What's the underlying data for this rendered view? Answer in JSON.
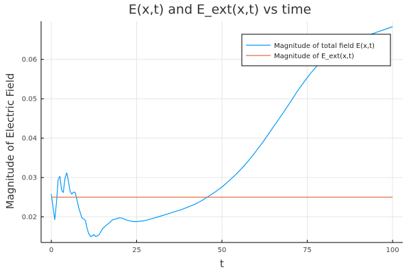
{
  "chart_data": {
    "type": "line",
    "title": "E(x,t) and E_ext(x,t) vs time",
    "xlabel": "t",
    "ylabel": "Magnitude of Electric Field",
    "xlim": [
      -3,
      103
    ],
    "ylim": [
      0.0135,
      0.0697
    ],
    "x_ticks": [
      0,
      25,
      50,
      75,
      100
    ],
    "x_tick_labels": [
      "0",
      "25",
      "50",
      "75",
      "100"
    ],
    "y_ticks": [
      0.02,
      0.03,
      0.04,
      0.05,
      0.06
    ],
    "y_tick_labels": [
      "0.02",
      "0.03",
      "0.04",
      "0.05",
      "0.06"
    ],
    "grid": true,
    "legend_position": "top-right",
    "series": [
      {
        "name": "Magnitude of total field E(x,t)",
        "color": "#009AFA",
        "x": [
          0,
          0.5,
          1,
          1.5,
          2,
          2.5,
          3,
          3.5,
          4,
          4.5,
          5,
          5.5,
          6,
          6.5,
          7,
          7.5,
          8,
          8.5,
          9,
          9.5,
          10,
          10.5,
          11,
          11.5,
          12,
          12.5,
          13,
          13.5,
          14,
          15,
          16,
          17,
          18,
          19,
          20,
          21,
          22,
          23,
          24,
          25,
          26,
          27,
          28,
          30,
          32,
          34,
          36,
          38,
          40,
          42,
          44,
          46,
          48,
          50,
          52,
          54,
          56,
          58,
          60,
          62,
          64,
          66,
          68,
          70,
          72,
          74,
          76,
          78,
          80,
          82,
          84,
          86,
          88,
          90,
          92,
          94,
          96,
          98,
          100
        ],
        "values": [
          0.0258,
          0.0225,
          0.0193,
          0.0235,
          0.0295,
          0.0303,
          0.0268,
          0.0262,
          0.0298,
          0.0312,
          0.0292,
          0.0265,
          0.0258,
          0.0263,
          0.0262,
          0.0243,
          0.0224,
          0.021,
          0.0197,
          0.0195,
          0.019,
          0.017,
          0.0157,
          0.015,
          0.0152,
          0.0155,
          0.015,
          0.0152,
          0.0155,
          0.017,
          0.0178,
          0.0185,
          0.0193,
          0.0195,
          0.0198,
          0.0196,
          0.0192,
          0.019,
          0.0188,
          0.0188,
          0.0189,
          0.019,
          0.0192,
          0.0197,
          0.0202,
          0.0207,
          0.0213,
          0.0218,
          0.0225,
          0.0232,
          0.0241,
          0.0252,
          0.0263,
          0.0276,
          0.0291,
          0.0307,
          0.0325,
          0.0345,
          0.0367,
          0.039,
          0.0415,
          0.044,
          0.0465,
          0.0491,
          0.0518,
          0.0542,
          0.0565,
          0.0585,
          0.0601,
          0.0615,
          0.0627,
          0.0637,
          0.0645,
          0.0652,
          0.0659,
          0.0665,
          0.0671,
          0.0677,
          0.0683
        ]
      },
      {
        "name": "Magnitude of E_ext(x,t)",
        "color": "#E26F46",
        "x": [
          0,
          100
        ],
        "values": [
          0.025,
          0.025
        ]
      }
    ]
  }
}
